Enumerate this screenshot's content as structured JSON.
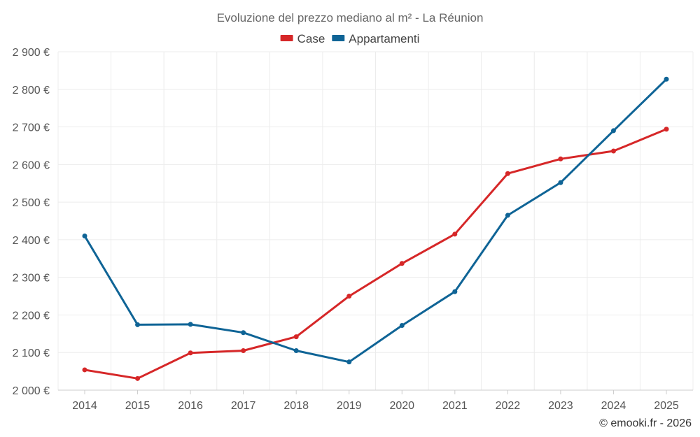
{
  "chart_data": {
    "type": "line",
    "title": "Evoluzione del prezzo mediano al m² - La Réunion",
    "categories": [
      "2014",
      "2015",
      "2016",
      "2017",
      "2018",
      "2019",
      "2020",
      "2021",
      "2022",
      "2023",
      "2024",
      "2025"
    ],
    "series": [
      {
        "name": "Case",
        "color": "#d62728",
        "values": [
          2054,
          2031,
          2099,
          2105,
          2142,
          2250,
          2337,
          2415,
          2576,
          2615,
          2636,
          2694
        ]
      },
      {
        "name": "Appartamenti",
        "color": "#0f6496",
        "values": [
          2410,
          2174,
          2175,
          2153,
          2105,
          2075,
          2172,
          2262,
          2465,
          2552,
          2690,
          2827
        ]
      }
    ],
    "y_ticks": [
      2000,
      2100,
      2200,
      2300,
      2400,
      2500,
      2600,
      2700,
      2800,
      2900
    ],
    "y_tick_labels": [
      "2 000 €",
      "2 100 €",
      "2 200 €",
      "2 300 €",
      "2 400 €",
      "2 500 €",
      "2 600 €",
      "2 700 €",
      "2 800 €",
      "2 900 €"
    ],
    "ylim": [
      2000,
      2900
    ],
    "xlabel": "",
    "ylabel": "",
    "grid": true,
    "legend_position": "top-center"
  },
  "credit": "© emooki.fr - 2026"
}
